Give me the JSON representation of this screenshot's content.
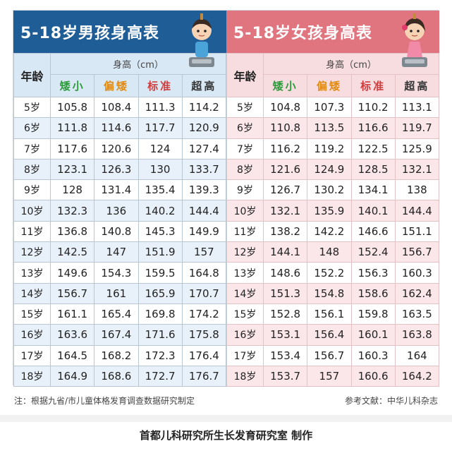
{
  "boys": {
    "title": "5-18岁男孩身高表",
    "colors": {
      "title_bg": "#1f5d97",
      "row_alt": "#e8f1f9"
    },
    "age_header": "年龄",
    "height_header": "身高（cm）",
    "categories": [
      "矮小",
      "偏矮",
      "标准",
      "超高"
    ],
    "rows": [
      [
        "5岁",
        "105.8",
        "108.4",
        "111.3",
        "114.2"
      ],
      [
        "6岁",
        "111.8",
        "114.6",
        "117.7",
        "120.9"
      ],
      [
        "7岁",
        "117.6",
        "120.6",
        "124",
        "127.4"
      ],
      [
        "8岁",
        "123.1",
        "126.3",
        "130",
        "133.7"
      ],
      [
        "9岁",
        "128",
        "131.4",
        "135.4",
        "139.3"
      ],
      [
        "10岁",
        "132.3",
        "136",
        "140.2",
        "144.4"
      ],
      [
        "11岁",
        "136.8",
        "140.8",
        "145.3",
        "149.9"
      ],
      [
        "12岁",
        "142.5",
        "147",
        "151.9",
        "157"
      ],
      [
        "13岁",
        "149.6",
        "154.3",
        "159.5",
        "164.8"
      ],
      [
        "14岁",
        "156.7",
        "161",
        "165.9",
        "170.7"
      ],
      [
        "15岁",
        "161.1",
        "165.4",
        "169.8",
        "174.2"
      ],
      [
        "16岁",
        "163.6",
        "167.4",
        "171.6",
        "175.8"
      ],
      [
        "17岁",
        "164.5",
        "168.2",
        "172.3",
        "176.4"
      ],
      [
        "18岁",
        "164.9",
        "168.6",
        "172.7",
        "176.7"
      ]
    ]
  },
  "girls": {
    "title": "5-18岁女孩身高表",
    "colors": {
      "title_bg": "#e0747f",
      "row_alt": "#fbe7e9"
    },
    "age_header": "年龄",
    "height_header": "身高（cm）",
    "categories": [
      "矮小",
      "偏矮",
      "标准",
      "超高"
    ],
    "rows": [
      [
        "5岁",
        "104.8",
        "107.3",
        "110.2",
        "113.1"
      ],
      [
        "6岁",
        "110.8",
        "113.5",
        "116.6",
        "119.7"
      ],
      [
        "7岁",
        "116.2",
        "119.2",
        "122.5",
        "125.9"
      ],
      [
        "8岁",
        "121.6",
        "124.9",
        "128.5",
        "132.1"
      ],
      [
        "9岁",
        "126.7",
        "130.2",
        "134.1",
        "138"
      ],
      [
        "10岁",
        "132.1",
        "135.9",
        "140.1",
        "144.4"
      ],
      [
        "11岁",
        "138.2",
        "142.2",
        "146.6",
        "151.1"
      ],
      [
        "12岁",
        "144.1",
        "148",
        "152.4",
        "156.7"
      ],
      [
        "13岁",
        "148.6",
        "152.2",
        "156.3",
        "160.3"
      ],
      [
        "14岁",
        "151.3",
        "154.8",
        "158.6",
        "162.4"
      ],
      [
        "15岁",
        "152.8",
        "156.1",
        "159.8",
        "163.5"
      ],
      [
        "16岁",
        "153.1",
        "156.4",
        "160.1",
        "163.8"
      ],
      [
        "17岁",
        "153.4",
        "156.7",
        "160.3",
        "164"
      ],
      [
        "18岁",
        "153.7",
        "157",
        "160.6",
        "164.2"
      ]
    ]
  },
  "category_colors": {
    "short": "#2d9a3a",
    "slightly_short": "#e28a12",
    "standard": "#d23c3c",
    "tall": "#333333"
  },
  "footer": {
    "note": "注：根据九省/市儿童体格发育调查数据研究制定",
    "reference": "参考文献：中华儿科杂志",
    "credit": "首都儿科研究所生长发育研究室 制作"
  },
  "icons": {
    "boy_avatar": "boy-on-scale-icon",
    "girl_avatar": "girl-on-scale-icon"
  }
}
